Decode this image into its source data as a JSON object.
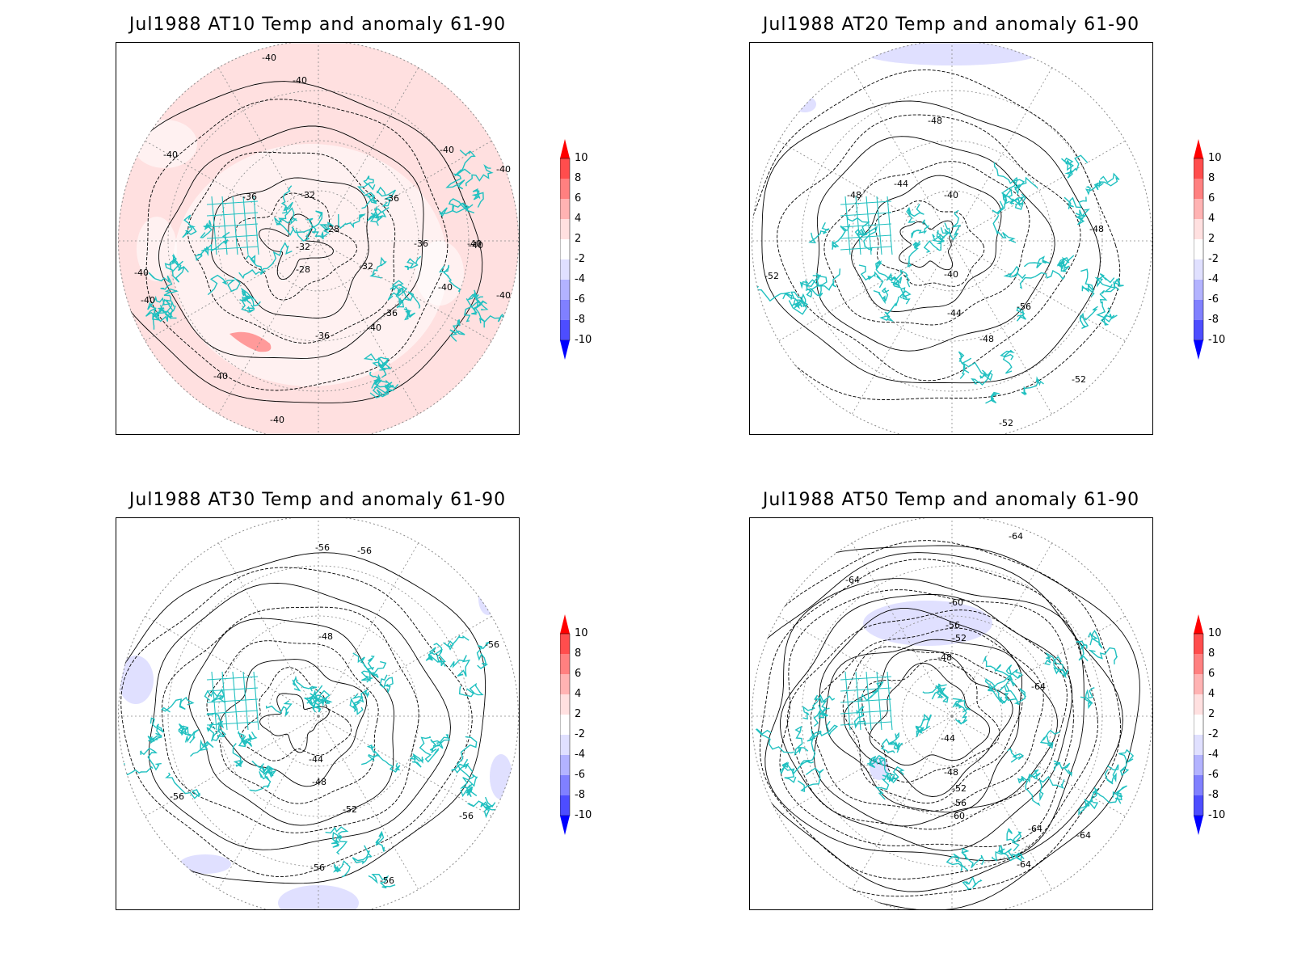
{
  "figure": {
    "panels": [
      {
        "title": "Jul1988 AT10 Temp and anomaly 61-90",
        "anomaly_fill": "positive",
        "contour_labels": [
          "-40",
          "-40",
          "-40",
          "-40",
          "-40",
          "-36",
          "-32",
          "-28",
          "-32",
          "-28",
          "-32",
          "-36",
          "-36",
          "-36",
          "-40",
          "-40",
          "-40",
          "-40",
          "-36",
          "-40",
          "-40",
          "-40",
          "-40",
          "-40"
        ]
      },
      {
        "title": "Jul1988 AT20 Temp and anomaly 61-90",
        "anomaly_fill": "weak",
        "contour_labels": [
          "-48",
          "-44",
          "-40",
          "-48",
          "-48",
          "-40",
          "-44",
          "-48",
          "-52",
          "-52",
          "-52",
          "-56"
        ]
      },
      {
        "title": "Jul1988 AT30 Temp and anomaly 61-90",
        "anomaly_fill": "weak-negative",
        "contour_labels": [
          "-56",
          "-56",
          "-48",
          "-44",
          "-48",
          "-52",
          "-56",
          "-56",
          "-56",
          "-56",
          "-56"
        ]
      },
      {
        "title": "Jul1988 AT50 Temp and anomaly 61-90",
        "anomaly_fill": "weak-negative",
        "contour_labels": [
          "-64",
          "-64",
          "-60",
          "-56",
          "-52",
          "-48",
          "-44",
          "-48",
          "-52",
          "-56",
          "-60",
          "-64",
          "-64",
          "-64",
          "-64"
        ]
      }
    ],
    "colorbar": {
      "labels": [
        "10",
        "8",
        "6",
        "4",
        "2",
        "-2",
        "-4",
        "-6",
        "-8",
        "-10"
      ],
      "colors": [
        "#ff0000",
        "#ff4d4d",
        "#ff8080",
        "#ffb3b3",
        "#ffe0e0",
        "#ffffff",
        "#e0e0ff",
        "#b3b3ff",
        "#8080ff",
        "#4d4dff",
        "#0000ff"
      ]
    },
    "coastline_color": "#20c0c0",
    "contour_color": "#000000",
    "grid_color": "#888888"
  }
}
